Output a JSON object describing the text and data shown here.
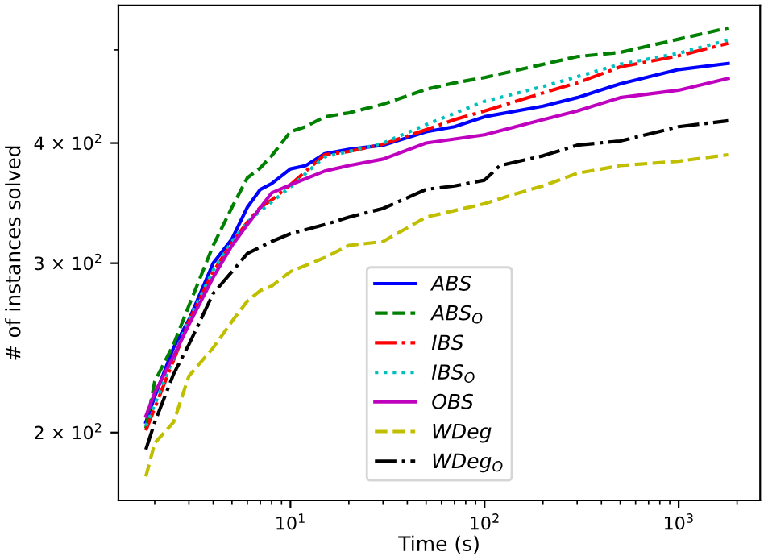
{
  "chart_data": {
    "type": "line",
    "xlabel": "Time (s)",
    "ylabel": "# of instances solved",
    "log": "xy",
    "grid": false,
    "legend": "lower center",
    "xlim": [
      1.3,
      2630
    ],
    "ylim": [
      170,
      556
    ],
    "xticks": [
      {
        "value": 2,
        "label": null
      },
      {
        "value": 3,
        "label": null
      },
      {
        "value": 4,
        "label": null
      },
      {
        "value": 5,
        "label": null
      },
      {
        "value": 6,
        "label": null
      },
      {
        "value": 7,
        "label": null
      },
      {
        "value": 8,
        "label": null
      },
      {
        "value": 9,
        "label": null
      },
      {
        "value": 10,
        "label": "10$^{1}$"
      },
      {
        "value": 20,
        "label": null
      },
      {
        "value": 30,
        "label": null
      },
      {
        "value": 40,
        "label": null
      },
      {
        "value": 50,
        "label": null
      },
      {
        "value": 60,
        "label": null
      },
      {
        "value": 70,
        "label": null
      },
      {
        "value": 80,
        "label": null
      },
      {
        "value": 90,
        "label": null
      },
      {
        "value": 100,
        "label": "10$^{2}$"
      },
      {
        "value": 200,
        "label": null
      },
      {
        "value": 300,
        "label": null
      },
      {
        "value": 400,
        "label": null
      },
      {
        "value": 500,
        "label": null
      },
      {
        "value": 600,
        "label": null
      },
      {
        "value": 700,
        "label": null
      },
      {
        "value": 800,
        "label": null
      },
      {
        "value": 900,
        "label": null
      },
      {
        "value": 1000,
        "label": "10$^{3}$"
      },
      {
        "value": 2000,
        "label": null
      }
    ],
    "yticks": [
      {
        "value": 200,
        "label": "2 × 10$^{2}$"
      },
      {
        "value": 300,
        "label": "3 × 10$^{2}$"
      },
      {
        "value": 400,
        "label": "4 × 10$^{2}$"
      },
      {
        "value": 500,
        "label": null
      }
    ],
    "series": [
      {
        "name": "ABS",
        "color": "#0000ff",
        "line_style": "solid",
        "x": [
          1.8,
          2,
          2.5,
          3,
          4,
          5,
          6,
          7,
          8,
          10,
          12,
          15,
          20,
          30,
          50,
          70,
          100,
          200,
          300,
          500,
          1000,
          1800
        ],
        "values": [
          205,
          218,
          245,
          262,
          300,
          318,
          343,
          358,
          363,
          376,
          379,
          390,
          394,
          398,
          411,
          416,
          426,
          437,
          446,
          461,
          477,
          484
        ]
      },
      {
        "name": "ABS$_{O}$",
        "color": "#008000",
        "line_style": "dashed",
        "x": [
          1.8,
          2,
          2.5,
          3,
          4,
          5,
          6,
          7,
          8,
          10,
          12,
          15,
          20,
          30,
          50,
          70,
          100,
          200,
          300,
          500,
          1000,
          1800
        ],
        "values": [
          202,
          226,
          247,
          271,
          313,
          343,
          368,
          377,
          388,
          411,
          416,
          426,
          430,
          439,
          455,
          462,
          468,
          483,
          492,
          497,
          513,
          527
        ]
      },
      {
        "name": "IBS",
        "color": "#ff0000",
        "line_style": "dashdot",
        "x": [
          1.8,
          3,
          4,
          5,
          6,
          7,
          8,
          10,
          15,
          20,
          30,
          50,
          70,
          100,
          200,
          300,
          500,
          1000,
          1800
        ],
        "values": [
          201,
          261,
          294,
          315,
          331,
          343,
          349,
          362,
          389,
          392,
          399,
          413,
          423,
          432,
          451,
          462,
          480,
          493,
          508
        ]
      },
      {
        "name": "IBS$_{O}$",
        "color": "#00bfbf",
        "line_style": "dotted",
        "x": [
          1.8,
          3,
          4,
          5,
          6,
          7,
          10,
          15,
          20,
          30,
          50,
          100,
          200,
          500,
          1000,
          1800
        ],
        "values": [
          203,
          262,
          295,
          316,
          331,
          340,
          360,
          387,
          392,
          400,
          418,
          442,
          458,
          483,
          496,
          512
        ]
      },
      {
        "name": "OBS",
        "color": "#bf00bf",
        "line_style": "solid",
        "x": [
          1.8,
          2,
          2.5,
          3,
          4,
          5,
          6,
          8,
          10,
          15,
          20,
          30,
          50,
          100,
          200,
          300,
          500,
          1000,
          1800
        ],
        "values": [
          208,
          220,
          240,
          259,
          290,
          313,
          329,
          355,
          362,
          374,
          379,
          385,
          400,
          408,
          423,
          432,
          446,
          454,
          467
        ]
      },
      {
        "name": "WDeg",
        "color": "#bfbf00",
        "line_style": "dashed",
        "x": [
          1.8,
          2,
          2.5,
          3,
          4,
          5,
          6,
          7,
          8,
          10,
          15,
          20,
          30,
          50,
          100,
          150,
          200,
          300,
          500,
          1000,
          1800
        ],
        "values": [
          180,
          195,
          205,
          229,
          245,
          261,
          274,
          281,
          284,
          294,
          304,
          313,
          316,
          335,
          346,
          355,
          361,
          372,
          379,
          383,
          389
        ]
      },
      {
        "name": "WDeg$_{O}$",
        "color": "#000000",
        "line_style": "dashdot",
        "x": [
          1.8,
          2,
          2.5,
          3,
          4,
          5,
          6,
          8,
          10,
          15,
          20,
          30,
          50,
          70,
          100,
          120,
          200,
          300,
          500,
          1000,
          1800
        ],
        "values": [
          192,
          205,
          230,
          247,
          279,
          294,
          307,
          316,
          322,
          329,
          335,
          342,
          358,
          361,
          366,
          379,
          388,
          398,
          402,
          416,
          422
        ]
      }
    ]
  }
}
